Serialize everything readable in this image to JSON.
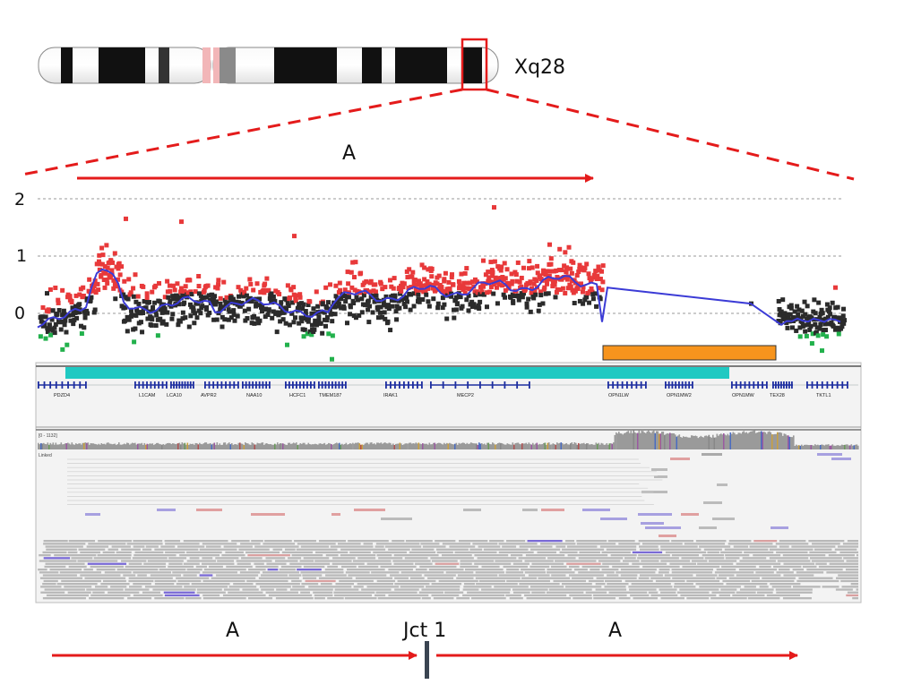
{
  "chromosome": {
    "band_label": "Xq28"
  },
  "copy_number_plot": {
    "y_ticks": [
      "2",
      "1",
      "0"
    ],
    "y_values": [
      2,
      1,
      0
    ],
    "ylim": [
      -0.8,
      2.2
    ]
  },
  "arrows": {
    "top_label": "A",
    "bottom_left_label": "A",
    "bottom_right_label": "A",
    "junction_label": "Jct 1"
  },
  "genes": [
    "PDZD4",
    "L1CAM",
    "LCA10",
    "AVPR2",
    "NAA10",
    "HCFC1",
    "TMEM187",
    "IRAK1",
    "MECP2",
    "OPN1LW",
    "OPN1MW2",
    "OPN1MW",
    "TEX28",
    "TKTL1"
  ],
  "igv": {
    "coverage_range": "[0 - 1132]",
    "track_label": "Linked"
  },
  "colors": {
    "gain": "#e8393a",
    "neutral": "#2b2b2b",
    "loss": "#22b14c",
    "segment": "#3b3bd6",
    "duplicated_region": "#20c9c2",
    "inserted_region": "#f7941d",
    "arrow": "#e41b1b",
    "gene": "#1d2ea0"
  }
}
